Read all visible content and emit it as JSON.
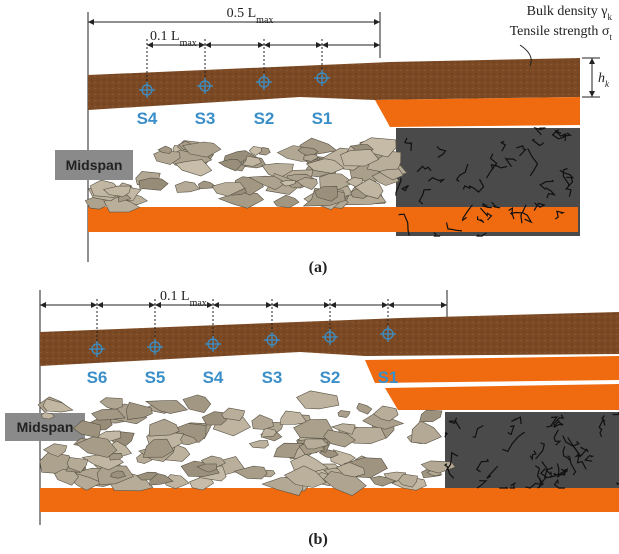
{
  "panel_a": {
    "caption": "(a)",
    "span": {
      "text": "0.5 L",
      "sub": "max"
    },
    "interval": {
      "text": "0.1 L",
      "sub": "max"
    },
    "legend_density": {
      "text": "Bulk density γ",
      "sub": "k"
    },
    "legend_strength": {
      "text": "Tensile strength σ",
      "sub": "t"
    },
    "thickness": {
      "text": "h",
      "sub": "k"
    },
    "points": [
      "S4",
      "S3",
      "S2",
      "S1"
    ],
    "midspan": "Midspan"
  },
  "panel_b": {
    "caption": "(b)",
    "interval": {
      "text": "0.1 L",
      "sub": "max"
    },
    "points": [
      "S6",
      "S5",
      "S4",
      "S3",
      "S2",
      "S1"
    ],
    "midspan": "Midspan"
  }
}
